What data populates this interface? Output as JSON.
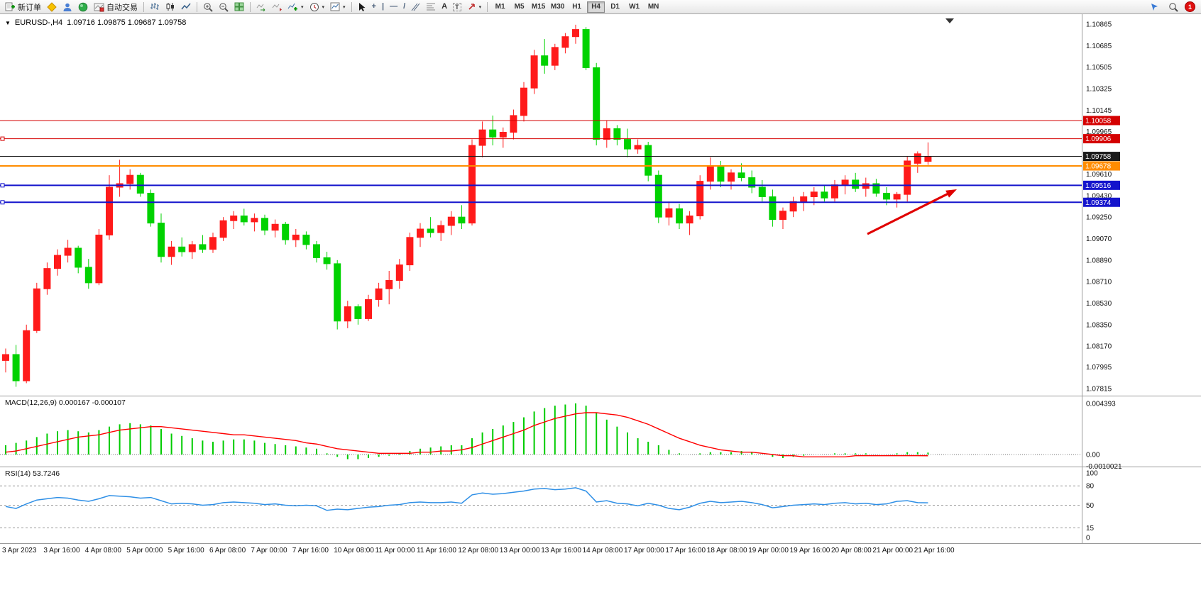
{
  "toolbar": {
    "new_order_label": "新订单",
    "autotrading_label": "自动交易",
    "timeframes": [
      "M1",
      "M5",
      "M15",
      "M30",
      "H1",
      "H4",
      "D1",
      "W1",
      "MN"
    ],
    "active_timeframe": "H4",
    "notification_count": "1",
    "tool_glyphs": {
      "crosshair": "+",
      "vline": "|",
      "hline": "—",
      "trendline": "/",
      "text_a": "A",
      "label_t": "T"
    }
  },
  "chart_header": {
    "symbol_label": "EURUSD-,H4",
    "ohlc_text": "1.09716 1.09875 1.09687 1.09758"
  },
  "chart_data": {
    "type": "candlestick",
    "symbol": "EURUSD-",
    "timeframe": "H4",
    "current_ohlc": {
      "open": "1.09716",
      "high": "1.09875",
      "low": "1.09687",
      "close": "1.09758"
    },
    "ylim": [
      1.07815,
      1.10865
    ],
    "price_ticks": [
      "1.10865",
      "1.10685",
      "1.10505",
      "1.10325",
      "1.10145",
      "1.09965",
      "1.09610",
      "1.09430",
      "1.09250",
      "1.09070",
      "1.08890",
      "1.08710",
      "1.08530",
      "1.08350",
      "1.08170",
      "1.07995",
      "1.07815"
    ],
    "x_labels": [
      "3 Apr 2023",
      "3 Apr 16:00",
      "4 Apr 08:00",
      "5 Apr 00:00",
      "5 Apr 16:00",
      "6 Apr 08:00",
      "7 Apr 00:00",
      "7 Apr 16:00",
      "10 Apr 08:00",
      "11 Apr 00:00",
      "11 Apr 16:00",
      "12 Apr 08:00",
      "13 Apr 00:00",
      "13 Apr 16:00",
      "14 Apr 08:00",
      "17 Apr 00:00",
      "17 Apr 16:00",
      "18 Apr 08:00",
      "19 Apr 00:00",
      "19 Apr 16:00",
      "20 Apr 08:00",
      "21 Apr 00:00",
      "21 Apr 16:00"
    ],
    "colors": {
      "up": "#FF1A1A",
      "down": "#00D200",
      "macd_hist": "#00CC00",
      "macd_signal": "#FF0000",
      "rsi": "#2E8FE6"
    },
    "candles": [
      [
        1.0805,
        1.0815,
        1.0795,
        1.081
      ],
      [
        1.081,
        1.0818,
        1.0783,
        1.0788
      ],
      [
        1.0788,
        1.0835,
        1.0786,
        1.083
      ],
      [
        1.083,
        1.087,
        1.0828,
        1.0865
      ],
      [
        1.0865,
        1.0887,
        1.086,
        1.0882
      ],
      [
        1.0882,
        1.0898,
        1.0876,
        1.0893
      ],
      [
        1.0893,
        1.0906,
        1.0887,
        1.0899
      ],
      [
        1.0899,
        1.0901,
        1.0878,
        1.0883
      ],
      [
        1.0883,
        1.089,
        1.0865,
        1.087
      ],
      [
        1.087,
        1.0915,
        1.0868,
        1.091
      ],
      [
        1.091,
        1.096,
        1.0906,
        1.095
      ],
      [
        1.095,
        1.0973,
        1.0942,
        1.0953
      ],
      [
        1.0953,
        1.0965,
        1.0948,
        1.096
      ],
      [
        1.096,
        1.0962,
        1.0942,
        1.0945
      ],
      [
        1.0945,
        1.0948,
        1.0917,
        1.092
      ],
      [
        1.092,
        1.0928,
        1.0887,
        1.0892
      ],
      [
        1.0892,
        1.0905,
        1.0885,
        1.09
      ],
      [
        1.09,
        1.0908,
        1.0892,
        1.0896
      ],
      [
        1.0896,
        1.0905,
        1.089,
        1.0902
      ],
      [
        1.0902,
        1.091,
        1.0895,
        1.0898
      ],
      [
        1.0898,
        1.0912,
        1.0895,
        1.0908
      ],
      [
        1.0908,
        1.0925,
        1.0905,
        1.0922
      ],
      [
        1.0922,
        1.093,
        1.0915,
        1.0926
      ],
      [
        1.0926,
        1.0932,
        1.0918,
        1.0921
      ],
      [
        1.0921,
        1.0928,
        1.0913,
        1.0924
      ],
      [
        1.0924,
        1.0927,
        1.091,
        1.0914
      ],
      [
        1.0914,
        1.0923,
        1.0908,
        1.0919
      ],
      [
        1.0919,
        1.0921,
        1.0902,
        1.0906
      ],
      [
        1.0906,
        1.0915,
        1.09,
        1.091
      ],
      [
        1.091,
        1.0913,
        1.0898,
        1.0902
      ],
      [
        1.0902,
        1.0905,
        1.0887,
        1.0891
      ],
      [
        1.0891,
        1.0896,
        1.0881,
        1.0886
      ],
      [
        1.0886,
        1.0889,
        1.0831,
        1.0838
      ],
      [
        1.0838,
        1.0855,
        1.0832,
        1.085
      ],
      [
        1.085,
        1.0852,
        1.0835,
        1.084
      ],
      [
        1.084,
        1.086,
        1.0838,
        1.0856
      ],
      [
        1.0856,
        1.087,
        1.085,
        1.0865
      ],
      [
        1.0865,
        1.088,
        1.0852,
        1.0872
      ],
      [
        1.0872,
        1.089,
        1.0865,
        1.0885
      ],
      [
        1.0885,
        1.0912,
        1.088,
        1.0908
      ],
      [
        1.0908,
        1.092,
        1.09,
        1.0915
      ],
      [
        1.0915,
        1.0925,
        1.0908,
        1.0912
      ],
      [
        1.0912,
        1.0922,
        1.0905,
        1.0918
      ],
      [
        1.0918,
        1.093,
        1.091,
        1.0925
      ],
      [
        1.0925,
        1.0935,
        1.0915,
        1.092
      ],
      [
        1.092,
        1.099,
        1.0918,
        1.0985
      ],
      [
        1.0985,
        1.1005,
        1.0975,
        1.0998
      ],
      [
        1.0998,
        1.101,
        1.0985,
        1.0992
      ],
      [
        1.0992,
        1.1,
        1.0983,
        1.0996
      ],
      [
        1.0996,
        1.1015,
        1.099,
        1.101
      ],
      [
        1.101,
        1.1038,
        1.1005,
        1.1033
      ],
      [
        1.1033,
        1.1065,
        1.1028,
        1.106
      ],
      [
        1.106,
        1.1074,
        1.1045,
        1.1052
      ],
      [
        1.1052,
        1.107,
        1.1048,
        1.1067
      ],
      [
        1.1067,
        1.1079,
        1.1062,
        1.1076
      ],
      [
        1.1076,
        1.1086,
        1.107,
        1.1082
      ],
      [
        1.1082,
        1.1084,
        1.1048,
        1.105
      ],
      [
        1.105,
        1.1054,
        1.0985,
        1.099
      ],
      [
        1.099,
        1.1006,
        1.0983,
        1.0999
      ],
      [
        1.0999,
        1.1002,
        1.0985,
        1.099
      ],
      [
        1.099,
        1.0999,
        1.0975,
        1.0982
      ],
      [
        1.0982,
        1.099,
        1.0978,
        1.0985
      ],
      [
        1.0985,
        1.0988,
        1.0955,
        1.096
      ],
      [
        1.096,
        1.0964,
        1.092,
        1.0925
      ],
      [
        1.0925,
        1.0938,
        1.0918,
        1.0932
      ],
      [
        1.0932,
        1.0936,
        1.0915,
        1.092
      ],
      [
        1.092,
        1.093,
        1.091,
        1.0926
      ],
      [
        1.0926,
        1.096,
        1.0923,
        1.0955
      ],
      [
        1.0955,
        1.0975,
        1.0948,
        1.0968
      ],
      [
        1.0968,
        1.0972,
        1.095,
        1.0955
      ],
      [
        1.0955,
        1.0965,
        1.0948,
        1.0962
      ],
      [
        1.0962,
        1.097,
        1.0955,
        1.0958
      ],
      [
        1.0958,
        1.0964,
        1.0945,
        1.095
      ],
      [
        1.095,
        1.0956,
        1.0938,
        1.0942
      ],
      [
        1.0942,
        1.0948,
        1.0917,
        1.0923
      ],
      [
        1.0923,
        1.0933,
        1.0915,
        1.093
      ],
      [
        1.093,
        1.0942,
        1.0925,
        1.0938
      ],
      [
        1.0938,
        1.0946,
        1.093,
        1.0942
      ],
      [
        1.0942,
        1.095,
        1.0935,
        1.0946
      ],
      [
        1.0946,
        1.0952,
        1.0938,
        1.0941
      ],
      [
        1.0941,
        1.0956,
        1.0938,
        1.0952
      ],
      [
        1.0952,
        1.096,
        1.0944,
        1.0956
      ],
      [
        1.0956,
        1.0962,
        1.0946,
        1.0949
      ],
      [
        1.0949,
        1.0958,
        1.0942,
        1.0953
      ],
      [
        1.0953,
        1.0957,
        1.0942,
        1.0945
      ],
      [
        1.0945,
        1.095,
        1.0935,
        1.094
      ],
      [
        1.094,
        1.0946,
        1.0933,
        1.0944
      ],
      [
        1.0944,
        1.0976,
        1.0938,
        1.0972
      ],
      [
        1.097,
        1.098,
        1.0962,
        1.0978
      ],
      [
        1.09716,
        1.09875,
        1.09687,
        1.09758
      ]
    ],
    "levels": [
      {
        "price": 1.10058,
        "label": "1.10058",
        "color": "#D40000",
        "width": 1,
        "selected": false
      },
      {
        "price": 1.09906,
        "label": "1.09906",
        "color": "#D40000",
        "width": 1,
        "selected": true
      },
      {
        "price": 1.09758,
        "label": "1.09758",
        "color": "#1A1A1A",
        "width": 1,
        "selected": false,
        "kind": "bid"
      },
      {
        "price": 1.09678,
        "label": "1.09678",
        "color": "#FF8C00",
        "width": 2,
        "selected": false
      },
      {
        "price": 1.09516,
        "label": "1.09516",
        "color": "#1414CC",
        "width": 2,
        "selected": true
      },
      {
        "price": 1.09374,
        "label": "1.09374",
        "color": "#1414CC",
        "width": 2,
        "selected": true
      }
    ],
    "macd": {
      "title": "MACD(12,26,9) 0.000167 -0.000107",
      "axis_labels": [
        "0.004393",
        "0.00",
        "-0.0010021"
      ],
      "ymax": 0.004393,
      "ymin": -0.0010021,
      "histogram": [
        0.0008,
        0.001,
        0.0012,
        0.0015,
        0.0018,
        0.002,
        0.0021,
        0.002,
        0.0019,
        0.0021,
        0.0024,
        0.0026,
        0.0027,
        0.0026,
        0.0025,
        0.0022,
        0.0018,
        0.0016,
        0.0014,
        0.0012,
        0.0011,
        0.0012,
        0.0013,
        0.0013,
        0.0012,
        0.001,
        0.0009,
        0.0008,
        0.0007,
        0.0006,
        0.0005,
        0.0001,
        -0.0002,
        -0.0004,
        -0.0004,
        -0.0003,
        -0.0002,
        -0.0001,
        0.0001,
        0.0003,
        0.0005,
        0.0006,
        0.0007,
        0.0008,
        0.0008,
        0.0014,
        0.0019,
        0.0022,
        0.0025,
        0.0028,
        0.0032,
        0.0037,
        0.004,
        0.0042,
        0.0043,
        0.0044,
        0.0042,
        0.0036,
        0.003,
        0.0024,
        0.0019,
        0.0014,
        0.0011,
        0.0008,
        0.0004,
        0.0001,
        0.0,
        0.0001,
        0.0002,
        0.0002,
        0.0002,
        0.0003,
        0.0002,
        0.0,
        -0.0002,
        -0.0003,
        -0.0002,
        -0.0001,
        0.0,
        0.0,
        0.0001,
        0.0001,
        0.0001,
        0.0001,
        0.0,
        0.0,
        0.0001,
        0.0002,
        0.0002,
        0.000167
      ],
      "signal": [
        0.0002,
        0.0003,
        0.0005,
        0.0007,
        0.0009,
        0.0011,
        0.0013,
        0.0015,
        0.0016,
        0.0017,
        0.0019,
        0.0021,
        0.0022,
        0.0023,
        0.0024,
        0.0024,
        0.0023,
        0.0022,
        0.0021,
        0.002,
        0.0019,
        0.0018,
        0.0017,
        0.0017,
        0.0016,
        0.0015,
        0.0014,
        0.0013,
        0.0012,
        0.001,
        0.0009,
        0.0007,
        0.0005,
        0.0004,
        0.0003,
        0.0002,
        0.0001,
        0.0001,
        0.0001,
        0.0001,
        0.0002,
        0.0002,
        0.0003,
        0.0003,
        0.0004,
        0.0006,
        0.0009,
        0.0012,
        0.0015,
        0.0018,
        0.0021,
        0.0025,
        0.0028,
        0.0031,
        0.0033,
        0.0035,
        0.0036,
        0.0036,
        0.0035,
        0.0034,
        0.0032,
        0.0029,
        0.0026,
        0.0022,
        0.0018,
        0.0014,
        0.0011,
        0.0008,
        0.0006,
        0.0004,
        0.0003,
        0.0002,
        0.0002,
        0.0001,
        0.0,
        -0.0001,
        -0.0001,
        -0.0002,
        -0.0002,
        -0.0002,
        -0.0002,
        -0.0002,
        -0.0001,
        -0.0001,
        -0.0001,
        -0.0001,
        -0.0001,
        -0.0001,
        -0.0001,
        -0.000107
      ]
    },
    "rsi": {
      "title": "RSI(14) 53.7246",
      "axis_labels": [
        "100",
        "80",
        "50",
        "15",
        "0"
      ],
      "levels": [
        80,
        50,
        15
      ],
      "values": [
        48,
        45,
        52,
        58,
        60,
        62,
        61,
        58,
        56,
        60,
        65,
        64,
        63,
        61,
        62,
        57,
        52,
        53,
        52,
        50,
        51,
        54,
        55,
        54,
        53,
        51,
        52,
        50,
        49,
        50,
        49,
        42,
        44,
        43,
        45,
        47,
        48,
        50,
        51,
        54,
        55,
        54,
        54,
        55,
        53,
        66,
        69,
        67,
        68,
        70,
        72,
        75,
        76,
        74,
        75,
        77,
        72,
        55,
        57,
        53,
        52,
        49,
        53,
        50,
        45,
        43,
        47,
        53,
        56,
        54,
        55,
        56,
        54,
        51,
        46,
        48,
        50,
        51,
        52,
        51,
        53,
        54,
        52,
        53,
        51,
        52,
        56,
        57,
        54,
        53.7246
      ]
    },
    "annotation_arrow": {
      "from": [
        1222,
        329
      ],
      "to": [
        1348,
        266
      ],
      "color": "#E00000"
    },
    "shift_marker_x": 1338
  }
}
